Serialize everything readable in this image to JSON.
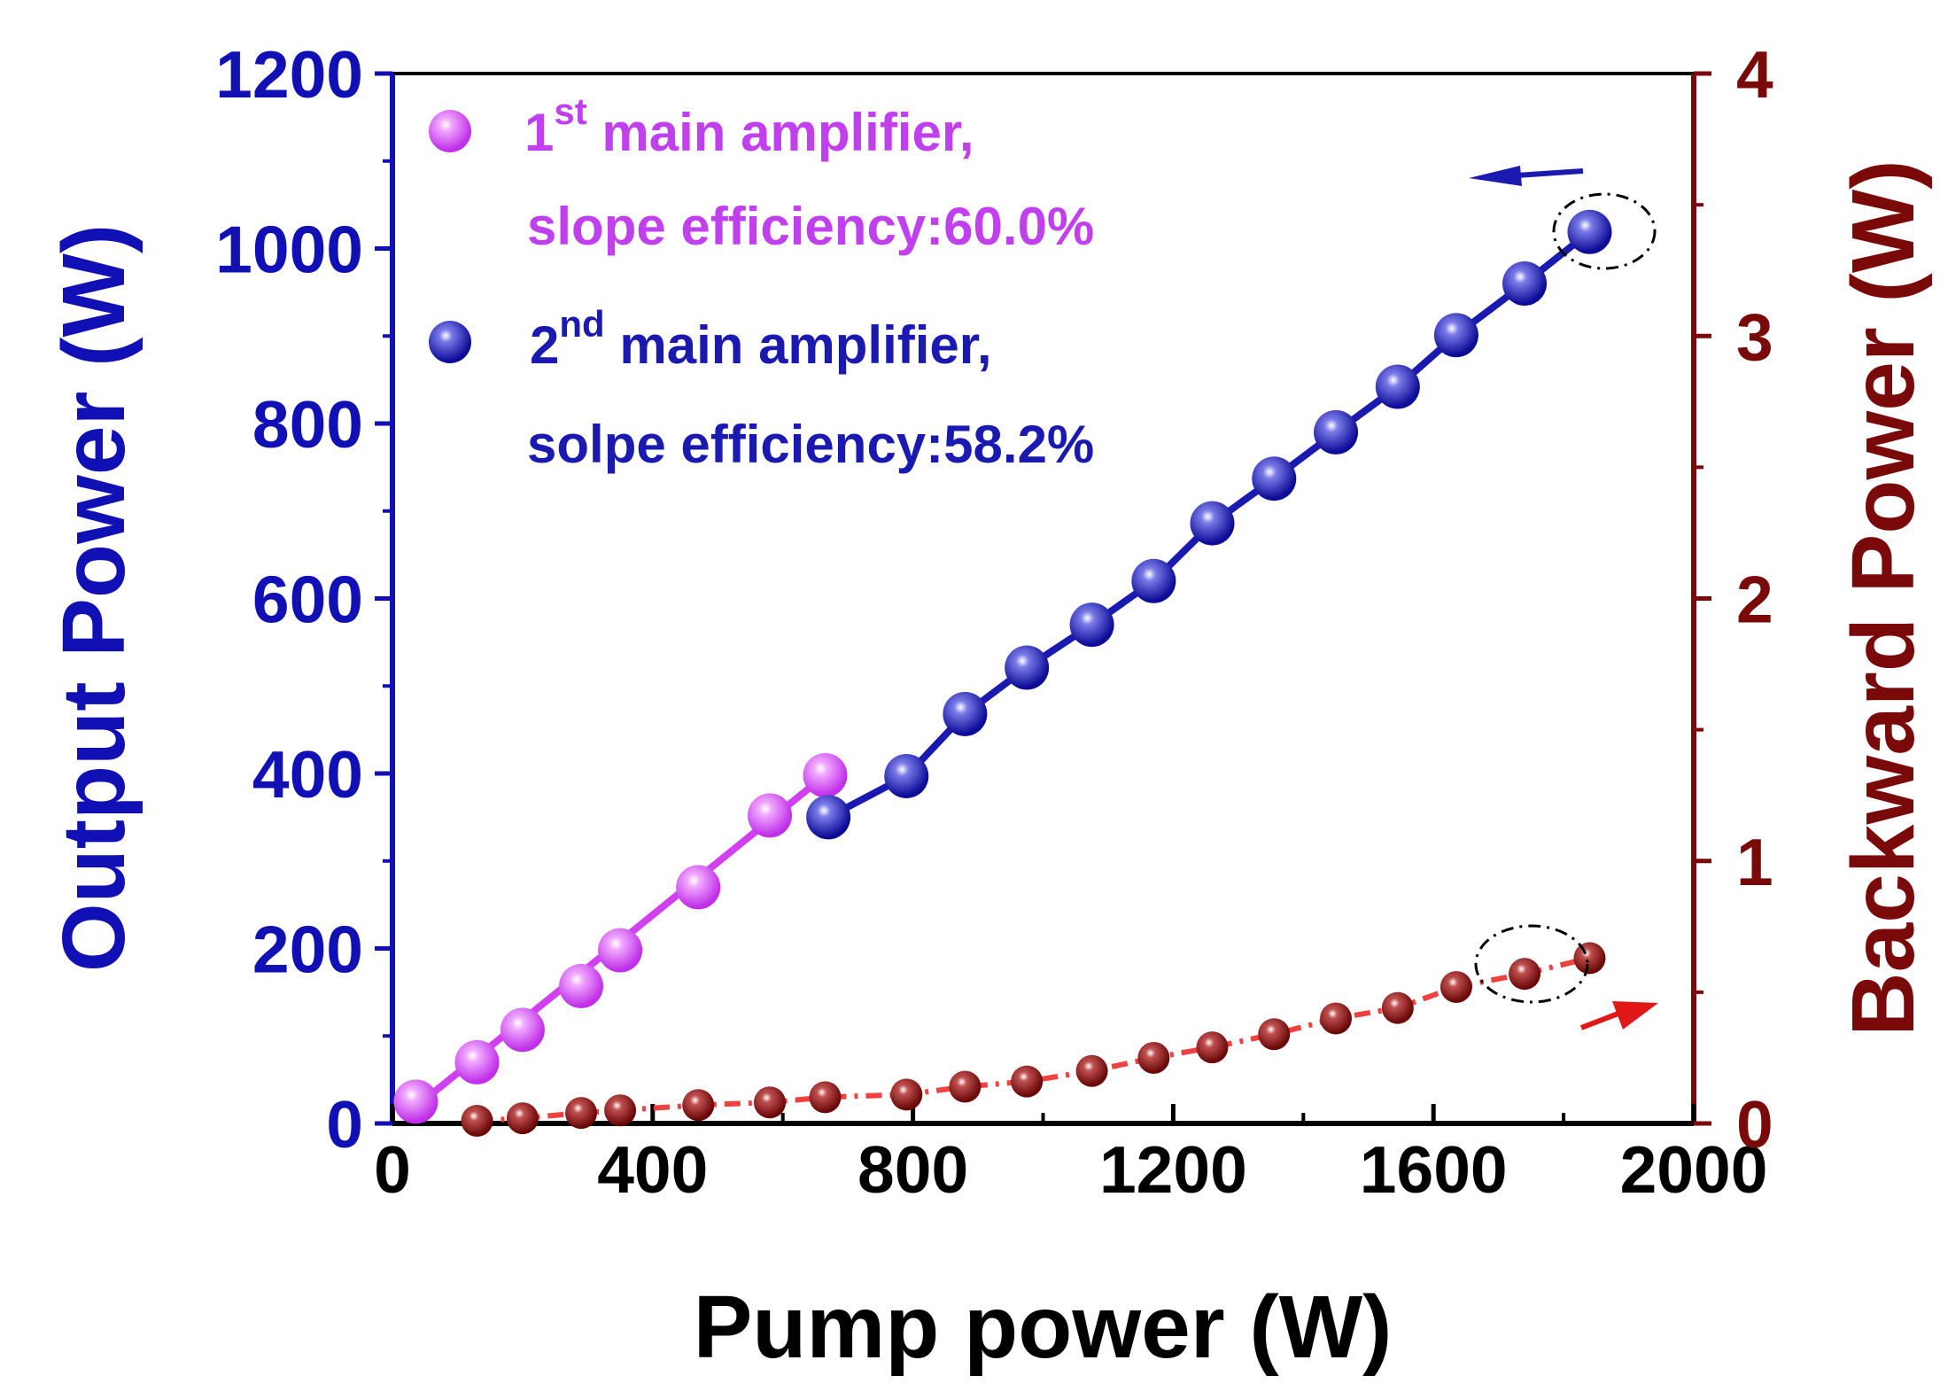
{
  "chart_data": {
    "type": "scatter",
    "xlabel": "Pump power (W)",
    "ylabel_left": "Output Power (W)",
    "ylabel_right": "Backward Power (W)",
    "xlim": [
      0,
      2000
    ],
    "ylim_left": [
      0,
      1200
    ],
    "ylim_right": [
      0,
      4
    ],
    "x_ticks": [
      "0",
      "400",
      "800",
      "1200",
      "1600",
      "2000"
    ],
    "y_left_ticks": [
      "0",
      "200",
      "400",
      "600",
      "800",
      "1000",
      "1200"
    ],
    "y_right_ticks": [
      "0",
      "1",
      "2",
      "3",
      "4"
    ],
    "colors": {
      "left_axis": "#1010b4",
      "right_axis": "#7a0a0a",
      "series1": "#d040ee",
      "series2": "#1a1ab0",
      "backward": "#8b1010",
      "backward_line": "#f04040",
      "arrow_blue": "#1a1ab0",
      "arrow_red": "#e01818"
    },
    "series": [
      {
        "name": "1st main amplifier",
        "axis": "left",
        "x": [
          36,
          130,
          200,
          290,
          350,
          470,
          580,
          665
        ],
        "y": [
          25,
          70,
          107,
          157,
          198,
          270,
          352,
          398
        ]
      },
      {
        "name": "2nd main amplifier",
        "axis": "left",
        "x": [
          670,
          790,
          880,
          975,
          1075,
          1170,
          1260,
          1355,
          1450,
          1545,
          1635,
          1740,
          1840
        ],
        "y": [
          350,
          397,
          468,
          521,
          570,
          620,
          686,
          737,
          790,
          842,
          901,
          960,
          1019
        ]
      },
      {
        "name": "Backward power",
        "axis": "right",
        "x": [
          130,
          200,
          290,
          350,
          470,
          580,
          665,
          790,
          880,
          975,
          1075,
          1170,
          1260,
          1355,
          1450,
          1545,
          1635,
          1740,
          1840
        ],
        "y": [
          0.01,
          0.02,
          0.04,
          0.05,
          0.07,
          0.08,
          0.1,
          0.11,
          0.14,
          0.16,
          0.2,
          0.25,
          0.29,
          0.34,
          0.4,
          0.44,
          0.52,
          0.57,
          0.63
        ]
      }
    ],
    "legend": [
      {
        "sup": "st",
        "pre": "1",
        "line1": " main amplifier,",
        "line2": "slope efficiency:60.0%"
      },
      {
        "sup": "nd",
        "pre": "2",
        "line1": " main amplifier,",
        "line2": "solpe efficiency:58.2%"
      }
    ]
  }
}
